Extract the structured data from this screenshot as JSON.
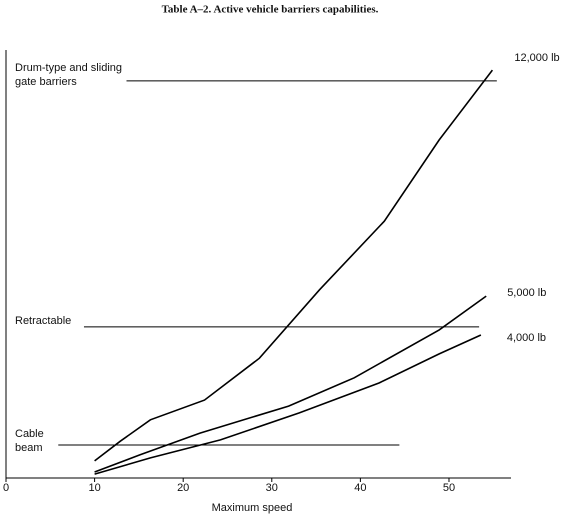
{
  "chart_data": {
    "type": "line",
    "title": "Table A–2.  Active vehicle barriers capabilities.",
    "xlabel": "Maximum speed",
    "xlim": [
      0,
      57
    ],
    "xticks": [
      0,
      10,
      20,
      30,
      40,
      50
    ],
    "ylim": [
      0,
      100
    ],
    "color": "#000000",
    "series": [
      {
        "name": "12,000 lb",
        "x": [
          10,
          12.9,
          16.3,
          22.4,
          28.6,
          35.4,
          42.7,
          48.9,
          54.9
        ],
        "values": [
          4,
          8.6,
          13.6,
          18.2,
          28,
          44,
          60,
          79,
          95.3
        ]
      },
      {
        "name": "5,000 lb",
        "x": [
          10,
          15.1,
          21.9,
          31.9,
          39.3,
          48.9,
          54.2
        ],
        "values": [
          1.4,
          5.4,
          10.5,
          16.8,
          23.4,
          34.6,
          42.5
        ]
      },
      {
        "name": "4,000 lb",
        "x": [
          10,
          16.3,
          24.2,
          33.1,
          42.1,
          48.9,
          53.6
        ],
        "values": [
          0.9,
          4.7,
          8.9,
          15.2,
          22.2,
          29,
          33.4
        ]
      }
    ],
    "thresholds": [
      {
        "label": [
          "Drum-type and sliding",
          "gate barriers"
        ],
        "value": 92.8,
        "x": [
          13.6,
          55.4
        ]
      },
      {
        "label": [
          "Retractable"
        ],
        "value": 35.3,
        "x": [
          8.8,
          53.4
        ]
      },
      {
        "label": [
          "Cable",
          "beam"
        ],
        "value": 7.7,
        "x": [
          5.9,
          44.4
        ]
      }
    ]
  }
}
